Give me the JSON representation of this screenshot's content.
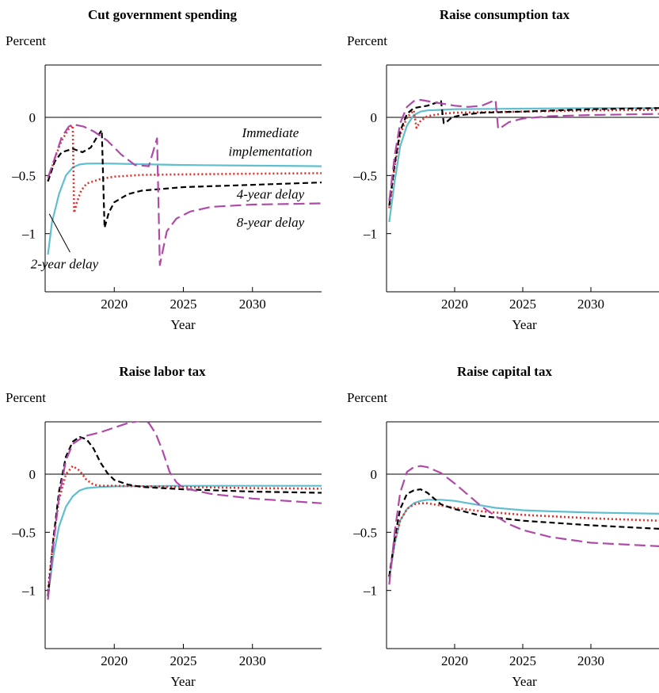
{
  "chart_data": [
    {
      "type": "line",
      "title": "Cut government spending",
      "ylabel": "Percent",
      "xlabel": "Year",
      "xlim": [
        2015,
        2035
      ],
      "ylim": [
        -1.5,
        0.45
      ],
      "xticks": [
        2020,
        2025,
        2030
      ],
      "yticks": [
        0,
        -0.5,
        -1
      ],
      "ytick_labels": [
        "0",
        "–0.5",
        "–1"
      ],
      "zero_line": true,
      "annotations": [
        {
          "text": "Immediate",
          "x": 2031.3,
          "y": -0.17
        },
        {
          "text": "implementation",
          "x": 2031.3,
          "y": -0.33
        },
        {
          "text": "4-year delay",
          "x": 2031.3,
          "y": -0.7
        },
        {
          "text": "8-year delay",
          "x": 2031.3,
          "y": -0.94
        },
        {
          "text": "2-year delay",
          "x": 2016.4,
          "y": -1.3
        }
      ],
      "pointer": {
        "from": [
          2016.8,
          -1.16
        ],
        "to": [
          2015.3,
          -0.83
        ]
      },
      "series": [
        {
          "name": "Immediate implementation",
          "color": "#5fbfcf",
          "dash": "solid",
          "x": [
            2015.2,
            2015.5,
            2016,
            2016.5,
            2017,
            2017.5,
            2018,
            2019,
            2020,
            2025,
            2030,
            2035
          ],
          "y": [
            -1.18,
            -0.9,
            -0.66,
            -0.5,
            -0.43,
            -0.405,
            -0.398,
            -0.397,
            -0.398,
            -0.41,
            -0.415,
            -0.42
          ]
        },
        {
          "name": "2-year delay",
          "color": "#e0302a",
          "dash": "dot",
          "x": [
            2015.2,
            2015.7,
            2016.2,
            2016.7,
            2017,
            2017.1,
            2017.3,
            2017.6,
            2018,
            2019,
            2020,
            2022,
            2025,
            2030,
            2035
          ],
          "y": [
            -0.55,
            -0.35,
            -0.2,
            -0.1,
            -0.07,
            -0.82,
            -0.73,
            -0.63,
            -0.57,
            -0.53,
            -0.51,
            -0.495,
            -0.49,
            -0.485,
            -0.48
          ]
        },
        {
          "name": "4-year delay",
          "color": "#000000",
          "dash": "dash",
          "x": [
            2015.2,
            2015.7,
            2016.2,
            2017,
            2017.7,
            2018.3,
            2018.8,
            2019.1,
            2019.3,
            2019.6,
            2020,
            2021,
            2022,
            2025,
            2030,
            2035
          ],
          "y": [
            -0.55,
            -0.38,
            -0.3,
            -0.27,
            -0.3,
            -0.26,
            -0.16,
            -0.11,
            -0.95,
            -0.82,
            -0.73,
            -0.66,
            -0.63,
            -0.6,
            -0.58,
            -0.56
          ]
        },
        {
          "name": "8-year delay",
          "color": "#b04aa8",
          "dash": "longdash",
          "x": [
            2015.2,
            2015.7,
            2016.2,
            2016.7,
            2017,
            2017.8,
            2018.5,
            2019.5,
            2020.5,
            2021.5,
            2022.5,
            2023.1,
            2023.3,
            2023.8,
            2024.5,
            2025.5,
            2027,
            2030,
            2035
          ],
          "y": [
            -0.52,
            -0.35,
            -0.17,
            -0.08,
            -0.06,
            -0.08,
            -0.12,
            -0.2,
            -0.32,
            -0.41,
            -0.42,
            -0.18,
            -1.27,
            -0.98,
            -0.87,
            -0.81,
            -0.77,
            -0.75,
            -0.74
          ]
        }
      ]
    },
    {
      "type": "line",
      "title": "Raise consumption tax",
      "ylabel": "Percent",
      "xlabel": "Year",
      "xlim": [
        2015,
        2035
      ],
      "ylim": [
        -1.5,
        0.45
      ],
      "xticks": [
        2020,
        2025,
        2030
      ],
      "yticks": [
        0,
        -0.5,
        -1
      ],
      "ytick_labels": [
        "0",
        "–0.5",
        "–1"
      ],
      "zero_line": true,
      "series": [
        {
          "name": "Immediate implementation",
          "color": "#5fbfcf",
          "dash": "solid",
          "x": [
            2015.2,
            2015.6,
            2016,
            2016.5,
            2017,
            2017.5,
            2018,
            2019,
            2020,
            2025,
            2030,
            2035
          ],
          "y": [
            -0.9,
            -0.55,
            -0.25,
            -0.07,
            0.02,
            0.05,
            0.06,
            0.065,
            0.07,
            0.075,
            0.08,
            0.08
          ]
        },
        {
          "name": "2-year delay",
          "color": "#e0302a",
          "dash": "dot",
          "x": [
            2015.2,
            2015.6,
            2016,
            2016.5,
            2017,
            2017.2,
            2017.5,
            2018,
            2019,
            2020,
            2025,
            2030,
            2035
          ],
          "y": [
            -0.78,
            -0.42,
            -0.15,
            0,
            0.06,
            -0.09,
            -0.03,
            0.01,
            0.03,
            0.04,
            0.05,
            0.06,
            0.065
          ]
        },
        {
          "name": "4-year delay",
          "color": "#000000",
          "dash": "dash",
          "x": [
            2015.2,
            2015.6,
            2016,
            2016.5,
            2017,
            2018,
            2019,
            2019.2,
            2019.4,
            2019.8,
            2020.5,
            2022,
            2025,
            2030,
            2035
          ],
          "y": [
            -0.76,
            -0.4,
            -0.12,
            0.03,
            0.08,
            0.1,
            0.14,
            -0.05,
            -0.04,
            0,
            0.02,
            0.04,
            0.05,
            0.07,
            0.08
          ]
        },
        {
          "name": "8-year delay",
          "color": "#b04aa8",
          "dash": "longdash",
          "x": [
            2015.2,
            2015.6,
            2016,
            2016.5,
            2017,
            2017.5,
            2018,
            2019,
            2020,
            2021,
            2022,
            2023,
            2023.2,
            2023.5,
            2024,
            2025,
            2027,
            2030,
            2035
          ],
          "y": [
            -0.72,
            -0.33,
            -0.05,
            0.09,
            0.14,
            0.15,
            0.14,
            0.12,
            0.1,
            0.09,
            0.1,
            0.15,
            -0.1,
            -0.08,
            -0.04,
            -0.01,
            0.01,
            0.02,
            0.03
          ]
        }
      ]
    },
    {
      "type": "line",
      "title": "Raise labor tax",
      "ylabel": "Percent",
      "xlabel": "Year",
      "xlim": [
        2015,
        2035
      ],
      "ylim": [
        -1.5,
        0.45
      ],
      "xticks": [
        2020,
        2025,
        2030
      ],
      "yticks": [
        0,
        -0.5,
        -1
      ],
      "ytick_labels": [
        "0",
        "–0.5",
        "–1"
      ],
      "zero_line": true,
      "series": [
        {
          "name": "Immediate implementation",
          "color": "#5fbfcf",
          "dash": "solid",
          "x": [
            2015.2,
            2015.6,
            2016,
            2016.5,
            2017,
            2017.5,
            2018,
            2019,
            2020,
            2025,
            2030,
            2035
          ],
          "y": [
            -1.05,
            -0.7,
            -0.45,
            -0.28,
            -0.19,
            -0.14,
            -0.12,
            -0.11,
            -0.105,
            -0.1,
            -0.1,
            -0.1
          ]
        },
        {
          "name": "2-year delay",
          "color": "#e0302a",
          "dash": "dot",
          "x": [
            2015.2,
            2015.6,
            2016,
            2016.5,
            2017,
            2017.5,
            2018,
            2018.5,
            2019,
            2020,
            2025,
            2030,
            2035
          ],
          "y": [
            -1.0,
            -0.55,
            -0.22,
            0,
            0.07,
            0.03,
            -0.05,
            -0.09,
            -0.1,
            -0.1,
            -0.11,
            -0.12,
            -0.125
          ]
        },
        {
          "name": "4-year delay",
          "color": "#000000",
          "dash": "dash",
          "x": [
            2015.2,
            2015.6,
            2016,
            2016.5,
            2017,
            2017.5,
            2018,
            2018.5,
            2019,
            2019.5,
            2020,
            2021,
            2022,
            2025,
            2030,
            2035
          ],
          "y": [
            -1.05,
            -0.55,
            -0.15,
            0.15,
            0.28,
            0.32,
            0.3,
            0.22,
            0.1,
            0.01,
            -0.05,
            -0.09,
            -0.11,
            -0.13,
            -0.15,
            -0.16
          ]
        },
        {
          "name": "8-year delay",
          "color": "#b04aa8",
          "dash": "longdash",
          "x": [
            2015.2,
            2015.6,
            2016,
            2016.5,
            2017,
            2017.5,
            2018,
            2019,
            2020,
            2021,
            2022,
            2022.5,
            2023,
            2023.5,
            2024,
            2024.5,
            2025,
            2027,
            2030,
            2035
          ],
          "y": [
            -1.08,
            -0.6,
            -0.2,
            0.12,
            0.26,
            0.3,
            0.33,
            0.36,
            0.4,
            0.44,
            0.46,
            0.44,
            0.35,
            0.2,
            0.02,
            -0.07,
            -0.12,
            -0.17,
            -0.21,
            -0.25
          ]
        }
      ]
    },
    {
      "type": "line",
      "title": "Raise capital tax",
      "ylabel": "Percent",
      "xlabel": "Year",
      "xlim": [
        2015,
        2035
      ],
      "ylim": [
        -1.5,
        0.45
      ],
      "xticks": [
        2020,
        2025,
        2030
      ],
      "yticks": [
        0,
        -0.5,
        -1
      ],
      "ytick_labels": [
        "0",
        "–0.5",
        "–1"
      ],
      "zero_line": true,
      "series": [
        {
          "name": "Immediate implementation",
          "color": "#5fbfcf",
          "dash": "solid",
          "x": [
            2015.2,
            2015.6,
            2016,
            2016.5,
            2017,
            2017.5,
            2018,
            2019,
            2020,
            2021,
            2022,
            2023,
            2025,
            2027,
            2030,
            2035
          ],
          "y": [
            -0.9,
            -0.6,
            -0.4,
            -0.3,
            -0.25,
            -0.23,
            -0.22,
            -0.22,
            -0.23,
            -0.25,
            -0.27,
            -0.29,
            -0.31,
            -0.32,
            -0.33,
            -0.34
          ]
        },
        {
          "name": "2-year delay",
          "color": "#e0302a",
          "dash": "dot",
          "x": [
            2015.2,
            2015.6,
            2016,
            2016.5,
            2017,
            2017.5,
            2018,
            2019,
            2020,
            2022,
            2025,
            2030,
            2035
          ],
          "y": [
            -0.88,
            -0.58,
            -0.4,
            -0.3,
            -0.26,
            -0.25,
            -0.25,
            -0.27,
            -0.29,
            -0.32,
            -0.35,
            -0.38,
            -0.4
          ]
        },
        {
          "name": "4-year delay",
          "color": "#000000",
          "dash": "dash",
          "x": [
            2015.2,
            2015.6,
            2016,
            2016.5,
            2017,
            2017.5,
            2018,
            2018.5,
            2019,
            2020,
            2021,
            2022,
            2025,
            2030,
            2035
          ],
          "y": [
            -0.88,
            -0.55,
            -0.3,
            -0.17,
            -0.14,
            -0.13,
            -0.16,
            -0.21,
            -0.26,
            -0.3,
            -0.33,
            -0.36,
            -0.4,
            -0.44,
            -0.47
          ]
        },
        {
          "name": "8-year delay",
          "color": "#b04aa8",
          "dash": "longdash",
          "x": [
            2015.2,
            2015.6,
            2016,
            2016.5,
            2017,
            2017.5,
            2018,
            2019,
            2020,
            2021,
            2022,
            2023,
            2024,
            2025,
            2027,
            2030,
            2035
          ],
          "y": [
            -0.95,
            -0.5,
            -0.16,
            0.02,
            0.06,
            0.07,
            0.06,
            0.01,
            -0.08,
            -0.18,
            -0.28,
            -0.36,
            -0.43,
            -0.48,
            -0.54,
            -0.59,
            -0.62
          ]
        }
      ]
    }
  ]
}
